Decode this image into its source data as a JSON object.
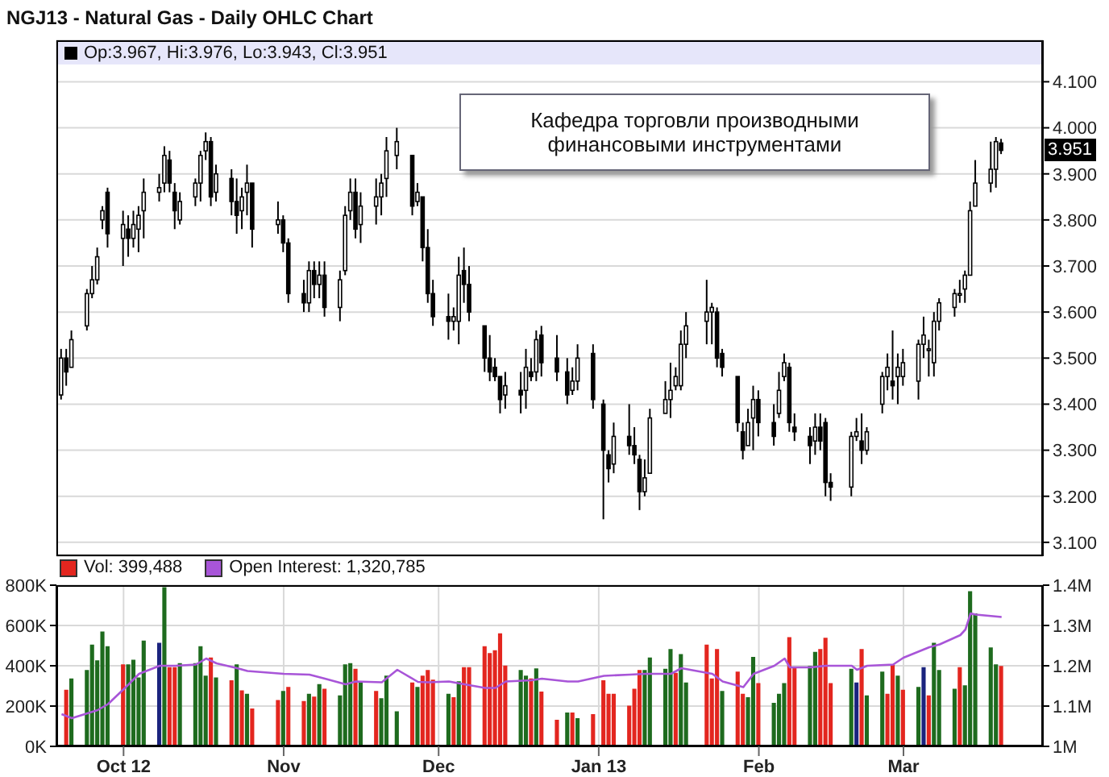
{
  "chart_data": [
    {
      "type": "candlestick",
      "title": "NGJ13 - Natural Gas - Daily OHLC Chart",
      "color": "#000000",
      "grid": true,
      "tick_labels": "y",
      "xlim": [
        "2012-09-18",
        "2013-03-28"
      ],
      "xticks": [
        {
          "value": "2012-10-01",
          "label": null
        },
        {
          "value": "2012-11-01",
          "label": null
        },
        {
          "value": "2012-12-01",
          "label": null
        },
        {
          "value": "2013-01-01",
          "label": null
        },
        {
          "value": "2013-02-01",
          "label": null
        },
        {
          "value": "2013-03-01",
          "label": null
        }
      ],
      "ylim": [
        3.07,
        4.19
      ],
      "yticks": [
        {
          "value": 3.1,
          "label": "3.100"
        },
        {
          "value": 3.2,
          "label": "3.200"
        },
        {
          "value": 3.3,
          "label": "3.300"
        },
        {
          "value": 3.4,
          "label": "3.400"
        },
        {
          "value": 3.5,
          "label": "3.500"
        },
        {
          "value": 3.6,
          "label": "3.600"
        },
        {
          "value": 3.7,
          "label": "3.700"
        },
        {
          "value": 3.8,
          "label": "3.800"
        },
        {
          "value": 3.9,
          "label": "3.900"
        },
        {
          "value": 4.0,
          "label": "4.000"
        },
        {
          "value": 4.1,
          "label": "4.100"
        }
      ],
      "annotations": [
        "Op:3.967, Hi:3.976, Lo:3.943, Cl:3.951",
        "Кафедра торговли производными финансовыми инструментами",
        "3.951"
      ],
      "x": [
        "2012-09-19",
        "2012-09-20",
        "2012-09-21",
        "2012-09-24",
        "2012-09-25",
        "2012-09-26",
        "2012-09-27",
        "2012-09-28",
        "2012-10-01",
        "2012-10-02",
        "2012-10-03",
        "2012-10-04",
        "2012-10-05",
        "2012-10-08",
        "2012-10-09",
        "2012-10-10",
        "2012-10-11",
        "2012-10-12",
        "2012-10-15",
        "2012-10-16",
        "2012-10-17",
        "2012-10-18",
        "2012-10-19",
        "2012-10-22",
        "2012-10-23",
        "2012-10-24",
        "2012-10-25",
        "2012-10-26",
        "2012-10-31",
        "2012-11-01",
        "2012-11-02",
        "2012-11-05",
        "2012-11-06",
        "2012-11-07",
        "2012-11-08",
        "2012-11-09",
        "2012-11-12",
        "2012-11-13",
        "2012-11-14",
        "2012-11-15",
        "2012-11-16",
        "2012-11-19",
        "2012-11-20",
        "2012-11-21",
        "2012-11-23",
        "2012-11-26",
        "2012-11-27",
        "2012-11-28",
        "2012-11-29",
        "2012-11-30",
        "2012-12-03",
        "2012-12-04",
        "2012-12-05",
        "2012-12-06",
        "2012-12-07",
        "2012-12-10",
        "2012-12-11",
        "2012-12-12",
        "2012-12-13",
        "2012-12-14",
        "2012-12-17",
        "2012-12-18",
        "2012-12-19",
        "2012-12-20",
        "2012-12-21",
        "2012-12-24",
        "2012-12-26",
        "2012-12-27",
        "2012-12-28",
        "2012-12-31",
        "2013-01-02",
        "2013-01-03",
        "2013-01-04",
        "2013-01-07",
        "2013-01-08",
        "2013-01-09",
        "2013-01-10",
        "2013-01-11",
        "2013-01-14",
        "2013-01-15",
        "2013-01-16",
        "2013-01-17",
        "2013-01-18",
        "2013-01-22",
        "2013-01-23",
        "2013-01-24",
        "2013-01-25",
        "2013-01-28",
        "2013-01-29",
        "2013-01-30",
        "2013-01-31",
        "2013-02-01",
        "2013-02-04",
        "2013-02-05",
        "2013-02-06",
        "2013-02-07",
        "2013-02-08",
        "2013-02-11",
        "2013-02-12",
        "2013-02-13",
        "2013-02-14",
        "2013-02-15",
        "2013-02-19",
        "2013-02-20",
        "2013-02-21",
        "2013-02-22",
        "2013-02-25",
        "2013-02-26",
        "2013-02-27",
        "2013-02-28",
        "2013-03-01",
        "2013-03-04",
        "2013-03-05",
        "2013-03-06",
        "2013-03-07",
        "2013-03-08",
        "2013-03-11",
        "2013-03-12",
        "2013-03-13",
        "2013-03-14",
        "2013-03-15",
        "2013-03-18",
        "2013-03-19",
        "2013-03-20"
      ],
      "ohlc": [
        [
          3.42,
          3.52,
          3.41,
          3.5
        ],
        [
          3.5,
          3.52,
          3.44,
          3.47
        ],
        [
          3.48,
          3.56,
          3.48,
          3.54
        ],
        [
          3.57,
          3.65,
          3.56,
          3.64
        ],
        [
          3.64,
          3.7,
          3.63,
          3.67
        ],
        [
          3.67,
          3.74,
          3.66,
          3.72
        ],
        [
          3.8,
          3.83,
          3.78,
          3.82
        ],
        [
          3.86,
          3.87,
          3.74,
          3.77
        ],
        [
          3.76,
          3.82,
          3.7,
          3.79
        ],
        [
          3.78,
          3.81,
          3.72,
          3.76
        ],
        [
          3.76,
          3.82,
          3.74,
          3.79
        ],
        [
          3.78,
          3.83,
          3.73,
          3.81
        ],
        [
          3.82,
          3.89,
          3.76,
          3.86
        ],
        [
          3.86,
          3.9,
          3.84,
          3.87
        ],
        [
          3.88,
          3.96,
          3.86,
          3.94
        ],
        [
          3.93,
          3.95,
          3.86,
          3.88
        ],
        [
          3.86,
          3.88,
          3.78,
          3.82
        ],
        [
          3.8,
          3.86,
          3.79,
          3.84
        ],
        [
          3.85,
          3.89,
          3.83,
          3.88
        ],
        [
          3.88,
          3.95,
          3.84,
          3.94
        ],
        [
          3.95,
          3.99,
          3.93,
          3.97
        ],
        [
          3.97,
          3.98,
          3.83,
          3.85
        ],
        [
          3.86,
          3.92,
          3.84,
          3.9
        ],
        [
          3.89,
          3.91,
          3.81,
          3.84
        ],
        [
          3.84,
          3.89,
          3.77,
          3.81
        ],
        [
          3.82,
          3.87,
          3.78,
          3.85
        ],
        [
          3.86,
          3.92,
          3.81,
          3.88
        ],
        [
          3.88,
          3.88,
          3.74,
          3.78
        ],
        [
          3.79,
          3.84,
          3.77,
          3.8
        ],
        [
          3.8,
          3.81,
          3.73,
          3.75
        ],
        [
          3.75,
          3.76,
          3.62,
          3.64
        ],
        [
          3.64,
          3.67,
          3.6,
          3.62
        ],
        [
          3.62,
          3.71,
          3.6,
          3.69
        ],
        [
          3.69,
          3.71,
          3.63,
          3.66
        ],
        [
          3.66,
          3.71,
          3.63,
          3.68
        ],
        [
          3.68,
          3.71,
          3.59,
          3.61
        ],
        [
          3.61,
          3.69,
          3.58,
          3.67
        ],
        [
          3.69,
          3.83,
          3.68,
          3.81
        ],
        [
          3.82,
          3.89,
          3.8,
          3.86
        ],
        [
          3.86,
          3.89,
          3.76,
          3.78
        ],
        [
          3.79,
          3.86,
          3.75,
          3.83
        ],
        [
          3.83,
          3.89,
          3.79,
          3.85
        ],
        [
          3.85,
          3.9,
          3.81,
          3.88
        ],
        [
          3.89,
          3.98,
          3.85,
          3.95
        ],
        [
          3.94,
          4.0,
          3.91,
          3.97
        ],
        [
          3.94,
          3.94,
          3.81,
          3.83
        ],
        [
          3.84,
          3.88,
          3.83,
          3.86
        ],
        [
          3.85,
          3.85,
          3.71,
          3.74
        ],
        [
          3.74,
          3.78,
          3.62,
          3.64
        ],
        [
          3.64,
          3.67,
          3.57,
          3.59
        ],
        [
          3.59,
          3.64,
          3.54,
          3.58
        ],
        [
          3.58,
          3.61,
          3.56,
          3.59
        ],
        [
          3.58,
          3.72,
          3.53,
          3.68
        ],
        [
          3.69,
          3.74,
          3.62,
          3.66
        ],
        [
          3.66,
          3.7,
          3.58,
          3.6
        ],
        [
          3.57,
          3.57,
          3.47,
          3.5
        ],
        [
          3.5,
          3.55,
          3.45,
          3.47
        ],
        [
          3.48,
          3.5,
          3.45,
          3.46
        ],
        [
          3.46,
          3.46,
          3.38,
          3.41
        ],
        [
          3.42,
          3.47,
          3.39,
          3.44
        ],
        [
          3.43,
          3.47,
          3.38,
          3.42
        ],
        [
          3.43,
          3.52,
          3.39,
          3.48
        ],
        [
          3.47,
          3.5,
          3.45,
          3.46
        ],
        [
          3.47,
          3.56,
          3.45,
          3.54
        ],
        [
          3.55,
          3.57,
          3.46,
          3.49
        ],
        [
          3.5,
          3.55,
          3.45,
          3.47
        ],
        [
          3.47,
          3.5,
          3.4,
          3.42
        ],
        [
          3.43,
          3.48,
          3.42,
          3.45
        ],
        [
          3.45,
          3.53,
          3.43,
          3.5
        ],
        [
          3.51,
          3.53,
          3.39,
          3.41
        ],
        [
          3.4,
          3.41,
          3.15,
          3.3
        ],
        [
          3.29,
          3.3,
          3.23,
          3.26
        ],
        [
          3.27,
          3.36,
          3.25,
          3.33
        ],
        [
          3.33,
          3.4,
          3.29,
          3.31
        ],
        [
          3.31,
          3.35,
          3.27,
          3.29
        ],
        [
          3.28,
          3.29,
          3.17,
          3.21
        ],
        [
          3.21,
          3.28,
          3.2,
          3.24
        ],
        [
          3.25,
          3.39,
          3.25,
          3.37
        ],
        [
          3.38,
          3.45,
          3.38,
          3.41
        ],
        [
          3.41,
          3.49,
          3.37,
          3.43
        ],
        [
          3.44,
          3.48,
          3.43,
          3.46
        ],
        [
          3.44,
          3.56,
          3.43,
          3.53
        ],
        [
          3.53,
          3.6,
          3.5,
          3.57
        ],
        [
          3.58,
          3.67,
          3.53,
          3.6
        ],
        [
          3.6,
          3.62,
          3.53,
          3.61
        ],
        [
          3.6,
          3.61,
          3.48,
          3.5
        ],
        [
          3.51,
          3.52,
          3.46,
          3.48
        ],
        [
          3.46,
          3.46,
          3.34,
          3.36
        ],
        [
          3.34,
          3.36,
          3.28,
          3.3
        ],
        [
          3.31,
          3.39,
          3.31,
          3.36
        ],
        [
          3.37,
          3.44,
          3.3,
          3.41
        ],
        [
          3.41,
          3.43,
          3.33,
          3.36
        ],
        [
          3.36,
          3.4,
          3.31,
          3.33
        ],
        [
          3.38,
          3.47,
          3.37,
          3.43
        ],
        [
          3.46,
          3.51,
          3.45,
          3.49
        ],
        [
          3.48,
          3.49,
          3.34,
          3.36
        ],
        [
          3.35,
          3.38,
          3.32,
          3.34
        ],
        [
          3.33,
          3.35,
          3.27,
          3.31
        ],
        [
          3.32,
          3.38,
          3.29,
          3.35
        ],
        [
          3.35,
          3.38,
          3.3,
          3.32
        ],
        [
          3.36,
          3.37,
          3.2,
          3.23
        ],
        [
          3.23,
          3.25,
          3.19,
          3.22
        ],
        [
          3.22,
          3.34,
          3.2,
          3.33
        ],
        [
          3.33,
          3.37,
          3.32,
          3.34
        ],
        [
          3.32,
          3.38,
          3.27,
          3.3
        ],
        [
          3.3,
          3.35,
          3.29,
          3.34
        ],
        [
          3.4,
          3.47,
          3.38,
          3.46
        ],
        [
          3.46,
          3.51,
          3.43,
          3.48
        ],
        [
          3.45,
          3.56,
          3.41,
          3.44
        ],
        [
          3.46,
          3.51,
          3.4,
          3.48
        ],
        [
          3.46,
          3.52,
          3.44,
          3.49
        ],
        [
          3.45,
          3.54,
          3.41,
          3.53
        ],
        [
          3.53,
          3.59,
          3.5,
          3.55
        ],
        [
          3.52,
          3.54,
          3.46,
          3.52
        ],
        [
          3.49,
          3.6,
          3.46,
          3.58
        ],
        [
          3.58,
          3.63,
          3.56,
          3.62
        ],
        [
          3.61,
          3.65,
          3.59,
          3.64
        ],
        [
          3.64,
          3.67,
          3.62,
          3.64
        ],
        [
          3.65,
          3.69,
          3.62,
          3.68
        ],
        [
          3.68,
          3.84,
          3.68,
          3.82
        ],
        [
          3.83,
          3.93,
          3.83,
          3.88
        ],
        [
          3.88,
          3.97,
          3.86,
          3.91
        ],
        [
          3.91,
          3.98,
          3.87,
          3.97
        ],
        [
          3.967,
          3.976,
          3.943,
          3.951
        ]
      ]
    },
    {
      "type": "bar",
      "grid": true,
      "legend": "top left",
      "xlim": [
        "2012-09-18",
        "2013-03-28"
      ],
      "xticks": [
        {
          "value": "2012-10-01",
          "label": "Oct 12"
        },
        {
          "value": "2012-11-01",
          "label": "Nov"
        },
        {
          "value": "2012-12-01",
          "label": "Dec"
        },
        {
          "value": "2013-01-01",
          "label": "Jan 13"
        },
        {
          "value": "2013-02-01",
          "label": "Feb"
        },
        {
          "value": "2013-03-01",
          "label": "Mar"
        }
      ],
      "ylim": [
        0,
        800
      ],
      "yticks": [
        {
          "value": 0,
          "label": "0K"
        },
        {
          "value": 200,
          "label": "200K"
        },
        {
          "value": 400,
          "label": "400K"
        },
        {
          "value": 600,
          "label": "600K"
        },
        {
          "value": 800,
          "label": "800K"
        }
      ],
      "y2lim": [
        1.0,
        1.4
      ],
      "y2ticks": [
        {
          "value": 1.0,
          "label": "1M"
        },
        {
          "value": 1.1,
          "label": "1.1M"
        },
        {
          "value": 1.2,
          "label": "1.2M"
        },
        {
          "value": 1.3,
          "label": "1.3M"
        },
        {
          "value": 1.4,
          "label": "1.4M"
        }
      ],
      "x": [
        "2012-09-20",
        "2012-09-21",
        "2012-09-24",
        "2012-09-25",
        "2012-09-26",
        "2012-09-27",
        "2012-09-28",
        "2012-10-01",
        "2012-10-02",
        "2012-10-03",
        "2012-10-04",
        "2012-10-05",
        "2012-10-08",
        "2012-10-09",
        "2012-10-10",
        "2012-10-11",
        "2012-10-12",
        "2012-10-15",
        "2012-10-16",
        "2012-10-17",
        "2012-10-18",
        "2012-10-19",
        "2012-10-22",
        "2012-10-23",
        "2012-10-24",
        "2012-10-25",
        "2012-10-26",
        "2012-10-31",
        "2012-11-01",
        "2012-11-02",
        "2012-11-05",
        "2012-11-06",
        "2012-11-07",
        "2012-11-08",
        "2012-11-09",
        "2012-11-12",
        "2012-11-13",
        "2012-11-14",
        "2012-11-15",
        "2012-11-16",
        "2012-11-19",
        "2012-11-20",
        "2012-11-21",
        "2012-11-23",
        "2012-11-26",
        "2012-11-27",
        "2012-11-28",
        "2012-11-29",
        "2012-11-30",
        "2012-12-03",
        "2012-12-04",
        "2012-12-05",
        "2012-12-06",
        "2012-12-07",
        "2012-12-10",
        "2012-12-11",
        "2012-12-12",
        "2012-12-13",
        "2012-12-14",
        "2012-12-17",
        "2012-12-18",
        "2012-12-19",
        "2012-12-20",
        "2012-12-21",
        "2012-12-24",
        "2012-12-26",
        "2012-12-27",
        "2012-12-28",
        "2012-12-31",
        "2013-01-02",
        "2013-01-03",
        "2013-01-04",
        "2013-01-07",
        "2013-01-08",
        "2013-01-09",
        "2013-01-10",
        "2013-01-11",
        "2013-01-14",
        "2013-01-15",
        "2013-01-16",
        "2013-01-17",
        "2013-01-18",
        "2013-01-22",
        "2013-01-23",
        "2013-01-24",
        "2013-01-25",
        "2013-01-28",
        "2013-01-29",
        "2013-01-30",
        "2013-01-31",
        "2013-02-01",
        "2013-02-04",
        "2013-02-05",
        "2013-02-06",
        "2013-02-07",
        "2013-02-08",
        "2013-02-11",
        "2013-02-12",
        "2013-02-13",
        "2013-02-14",
        "2013-02-15",
        "2013-02-19",
        "2013-02-20",
        "2013-02-21",
        "2013-02-22",
        "2013-02-25",
        "2013-02-26",
        "2013-02-27",
        "2013-02-28",
        "2013-03-01",
        "2013-03-04",
        "2013-03-05",
        "2013-03-06",
        "2013-03-07",
        "2013-03-08",
        "2013-03-11",
        "2013-03-12",
        "2013-03-13",
        "2013-03-14",
        "2013-03-15",
        "2013-03-18",
        "2013-03-19",
        "2013-03-20"
      ],
      "series": [
        {
          "name": "Vol: 399,488",
          "color": "#e3261f",
          "values": [
            281,
            337,
            379,
            505,
            427,
            570,
            497,
            407,
            407,
            430,
            342,
            525,
            514,
            790,
            393,
            393,
            413,
            413,
            497,
            351,
            441,
            342,
            328,
            407,
            278,
            261,
            188,
            230,
            275,
            295,
            225,
            261,
            247,
            309,
            286,
            253,
            407,
            413,
            385,
            317,
            275,
            239,
            351,
            174,
            317,
            295,
            351,
            379,
            331,
            261,
            244,
            323,
            393,
            393,
            497,
            463,
            477,
            561,
            401,
            379,
            351,
            337,
            387,
            272,
            132,
            168,
            168,
            140,
            160,
            328,
            261,
            261,
            202,
            286,
            379,
            379,
            441,
            385,
            483,
            365,
            458,
            317,
            505,
            337,
            483,
            275,
            371,
            261,
            244,
            444,
            314,
            216,
            261,
            314,
            542,
            393,
            399,
            469,
            483,
            539,
            314,
            385,
            317,
            483,
            253,
            371,
            261,
            407,
            351,
            281,
            295,
            393,
            253,
            514,
            379,
            286,
            393,
            303,
            770,
            660,
            491,
            407,
            399
          ],
          "colors": [
            "#e3261f",
            "#1e6b1e",
            "#1e6b1e",
            "#1e6b1e",
            "#1e6b1e",
            "#1e6b1e",
            "#1e6b1e",
            "#e3261f",
            "#1e6b1e",
            "#1e6b1e",
            "#1e6b1e",
            "#1e6b1e",
            "#1a237e",
            "#1e6b1e",
            "#e3261f",
            "#e3261f",
            "#1e6b1e",
            "#1e6b1e",
            "#1e6b1e",
            "#1e6b1e",
            "#e3261f",
            "#1e6b1e",
            "#e3261f",
            "#1e6b1e",
            "#e3261f",
            "#1e6b1e",
            "#e3261f",
            "#e3261f",
            "#1e6b1e",
            "#e3261f",
            "#e3261f",
            "#1e6b1e",
            "#e3261f",
            "#1e6b1e",
            "#e3261f",
            "#1e6b1e",
            "#1e6b1e",
            "#1e6b1e",
            "#e3261f",
            "#1e6b1e",
            "#e3261f",
            "#1e6b1e",
            "#1e6b1e",
            "#1e6b1e",
            "#e3261f",
            "#1e6b1e",
            "#e3261f",
            "#e3261f",
            "#e3261f",
            "#1e6b1e",
            "#e3261f",
            "#1e6b1e",
            "#e3261f",
            "#e3261f",
            "#e3261f",
            "#e3261f",
            "#e3261f",
            "#e3261f",
            "#e3261f",
            "#1e6b1e",
            "#1e6b1e",
            "#e3261f",
            "#1e6b1e",
            "#e3261f",
            "#e3261f",
            "#1e6b1e",
            "#e3261f",
            "#1e6b1e",
            "#e3261f",
            "#e3261f",
            "#e3261f",
            "#e3261f",
            "#e3261f",
            "#e3261f",
            "#e3261f",
            "#1e6b1e",
            "#1e6b1e",
            "#1e6b1e",
            "#1e6b1e",
            "#e3261f",
            "#1e6b1e",
            "#1e6b1e",
            "#e3261f",
            "#e3261f",
            "#e3261f",
            "#1e6b1e",
            "#e3261f",
            "#e3261f",
            "#1e6b1e",
            "#1e6b1e",
            "#e3261f",
            "#1e6b1e",
            "#1e6b1e",
            "#1e6b1e",
            "#e3261f",
            "#e3261f",
            "#1e6b1e",
            "#1e6b1e",
            "#e3261f",
            "#e3261f",
            "#e3261f",
            "#1e6b1e",
            "#1a237e",
            "#e3261f",
            "#1e6b1e",
            "#1e6b1e",
            "#e3261f",
            "#e3261f",
            "#1e6b1e",
            "#e3261f",
            "#1e6b1e",
            "#1a237e",
            "#e3261f",
            "#1e6b1e",
            "#1e6b1e",
            "#1e6b1e",
            "#e3261f",
            "#1e6b1e",
            "#1e6b1e",
            "#1e6b1e",
            "#1e6b1e",
            "#1e6b1e",
            "#e3261f"
          ]
        },
        {
          "type": "line",
          "name": "Open Interest: 1,320,785",
          "color": "#a855d8",
          "axis": "y2",
          "x": [
            "2012-09-19",
            "2012-09-21",
            "2012-09-26",
            "2012-09-28",
            "2012-10-02",
            "2012-10-04",
            "2012-10-08",
            "2012-10-11",
            "2012-10-15",
            "2012-10-17",
            "2012-10-19",
            "2012-10-23",
            "2012-10-25",
            "2012-11-01",
            "2012-11-06",
            "2012-11-09",
            "2012-11-13",
            "2012-11-15",
            "2012-11-20",
            "2012-11-23",
            "2012-11-27",
            "2012-11-29",
            "2012-12-03",
            "2012-12-06",
            "2012-12-10",
            "2012-12-12",
            "2012-12-14",
            "2012-12-19",
            "2012-12-21",
            "2012-12-26",
            "2012-12-28",
            "2013-01-02",
            "2013-01-07",
            "2013-01-10",
            "2013-01-15",
            "2013-01-17",
            "2013-01-23",
            "2013-01-25",
            "2013-01-29",
            "2013-01-31",
            "2013-02-04",
            "2013-02-06",
            "2013-02-07",
            "2013-02-11",
            "2013-02-14",
            "2013-02-19",
            "2013-02-20",
            "2013-02-22",
            "2013-02-27",
            "2013-03-01",
            "2013-03-06",
            "2013-03-08",
            "2013-03-12",
            "2013-03-13",
            "2013-03-14",
            "2013-03-15",
            "2013-03-20"
          ],
          "values": [
            1.08,
            1.07,
            1.09,
            1.105,
            1.154,
            1.18,
            1.2,
            1.2,
            1.203,
            1.218,
            1.206,
            1.194,
            1.187,
            1.18,
            1.178,
            1.168,
            1.154,
            1.161,
            1.159,
            1.19,
            1.16,
            1.159,
            1.161,
            1.154,
            1.145,
            1.145,
            1.161,
            1.164,
            1.168,
            1.161,
            1.161,
            1.175,
            1.178,
            1.18,
            1.18,
            1.194,
            1.18,
            1.161,
            1.147,
            1.18,
            1.2,
            1.218,
            1.196,
            1.196,
            1.2,
            1.2,
            1.19,
            1.2,
            1.203,
            1.22,
            1.246,
            1.253,
            1.276,
            1.29,
            1.33,
            1.327,
            1.321
          ]
        }
      ]
    }
  ]
}
